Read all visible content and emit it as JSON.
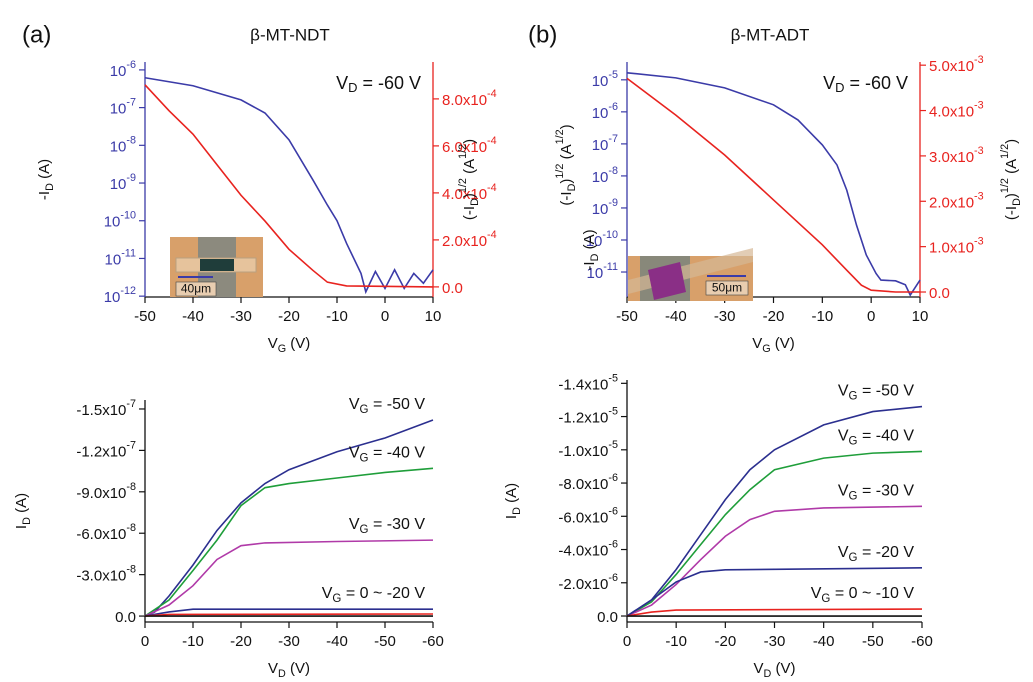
{
  "chart_data": [
    {
      "type": "line",
      "panel": "(a)",
      "title": "β-MT-NDT",
      "annotation": [
        "V",
        {
          "sub": "D"
        },
        " = -60 V"
      ],
      "inset_label": "40μm",
      "xlabel": [
        "V",
        {
          "sub": "G"
        },
        " (V)"
      ],
      "ylabel": [
        "-I",
        {
          "sub": "D"
        },
        " (A)"
      ],
      "y2label": [
        "(-I",
        {
          "sub": "D"
        },
        ")",
        {
          "sup": "1/2"
        },
        " (A",
        {
          "sup": "1/2"
        },
        ")"
      ],
      "xlim": [
        -50,
        10
      ],
      "xticks": [
        -50,
        -40,
        -30,
        -20,
        -10,
        0,
        10
      ],
      "yscale": "log",
      "ylim": [
        9.5e-13,
        1.62e-06
      ],
      "ycolor": "#3b3ba8",
      "yticks": [
        {
          "value": 1e-06,
          "label": [
            "10",
            {
              "sup": "-6"
            }
          ]
        },
        {
          "value": 1e-07,
          "label": [
            "10",
            {
              "sup": "-7"
            }
          ]
        },
        {
          "value": 1e-08,
          "label": [
            "10",
            {
              "sup": "-8"
            }
          ]
        },
        {
          "value": 1e-09,
          "label": [
            "10",
            {
              "sup": "-9"
            }
          ]
        },
        {
          "value": 1e-10,
          "label": [
            "10",
            {
              "sup": "-10"
            }
          ]
        },
        {
          "value": 1e-11,
          "label": [
            "10",
            {
              "sup": "-11"
            }
          ]
        },
        {
          "value": 1e-12,
          "label": [
            "10",
            {
              "sup": "-12"
            }
          ]
        }
      ],
      "y2lim": [
        -4.3e-05,
        0.000957
      ],
      "y2color": "#e8231f",
      "y2ticks": [
        {
          "value": 0,
          "label": "0.0"
        },
        {
          "value": 0.0002,
          "label": [
            "2.0x10",
            {
              "sup": "-4"
            }
          ]
        },
        {
          "value": 0.0004,
          "label": [
            "4.0x10",
            {
              "sup": "-4"
            }
          ]
        },
        {
          "value": 0.0006,
          "label": [
            "6.0x10",
            {
              "sup": "-4"
            }
          ]
        },
        {
          "value": 0.0008,
          "label": [
            "8.0x10",
            {
              "sup": "-4"
            }
          ]
        }
      ],
      "series": [
        {
          "color": "#3b3ba8",
          "x": [
            -50,
            -40,
            -30,
            -25,
            -20,
            -15,
            -12,
            -10,
            -8,
            -5,
            -4,
            -2,
            0,
            2,
            4,
            6,
            8,
            10
          ],
          "values": [
            6.2e-07,
            3.8e-07,
            1.6e-07,
            7.2e-08,
            1.4e-08,
            1.2e-09,
            2.6e-10,
            1e-10,
            2.5e-11,
            4e-12,
            1.3e-12,
            4.5e-12,
            1.6e-12,
            5e-12,
            1.6e-12,
            4e-12,
            2.2e-12,
            5e-12
          ]
        },
        {
          "color": "#e8231f",
          "axis": "y2",
          "x": [
            -50,
            -45,
            -40,
            -35,
            -30,
            -25,
            -20,
            -15,
            -12,
            -8,
            10
          ],
          "values": [
            0.00086,
            0.00075,
            0.00065,
            0.00052,
            0.00039,
            0.00028,
            0.00016,
            7e-05,
            2e-05,
            4e-06,
            0
          ]
        }
      ]
    },
    {
      "type": "line",
      "panel": "(b)",
      "title": "β-MT-ADT",
      "annotation": [
        "V",
        {
          "sub": "D"
        },
        " = -60 V"
      ],
      "inset_label": "50μm",
      "xlabel": [
        "V",
        {
          "sub": "G"
        },
        " (V)"
      ],
      "ylabel": [
        "-I",
        {
          "sub": "D"
        },
        " (A)"
      ],
      "ylabel_outer": [
        "(-I",
        {
          "sub": "D"
        },
        ")",
        {
          "sup": "1/2"
        },
        " (A",
        {
          "sup": "1/2"
        },
        ")"
      ],
      "y2label": [
        "(-I",
        {
          "sub": "D"
        },
        ")",
        {
          "sup": "1/2"
        },
        " (A",
        {
          "sup": "1/2"
        },
        ")"
      ],
      "xlim": [
        -50,
        10
      ],
      "xticks": [
        -50,
        -40,
        -30,
        -20,
        -10,
        0,
        10
      ],
      "yscale": "log",
      "ylim": [
        1.66e-12,
        3.6e-05
      ],
      "ycolor": "#3b3ba8",
      "yticks": [
        {
          "value": 1e-05,
          "label": [
            "10",
            {
              "sup": "-5"
            }
          ]
        },
        {
          "value": 1e-06,
          "label": [
            "10",
            {
              "sup": "-6"
            }
          ]
        },
        {
          "value": 1e-07,
          "label": [
            "10",
            {
              "sup": "-7"
            }
          ]
        },
        {
          "value": 1e-08,
          "label": [
            "10",
            {
              "sup": "-8"
            }
          ]
        },
        {
          "value": 1e-09,
          "label": [
            "10",
            {
              "sup": "-9"
            }
          ]
        },
        {
          "value": 1e-10,
          "label": [
            "10",
            {
              "sup": "-10"
            }
          ]
        },
        {
          "value": 1e-11,
          "label": [
            "10",
            {
              "sup": "-11"
            }
          ]
        }
      ],
      "y2lim": [
        -0.00011,
        0.00507
      ],
      "y2color": "#e8231f",
      "y2ticks": [
        {
          "value": 0,
          "label": "0.0"
        },
        {
          "value": 0.001,
          "label": [
            "1.0x10",
            {
              "sup": "-3"
            }
          ]
        },
        {
          "value": 0.002,
          "label": [
            "2.0x10",
            {
              "sup": "-3"
            }
          ]
        },
        {
          "value": 0.003,
          "label": [
            "3.0x10",
            {
              "sup": "-3"
            }
          ]
        },
        {
          "value": 0.004,
          "label": [
            "4.0x10",
            {
              "sup": "-3"
            }
          ]
        },
        {
          "value": 0.005,
          "label": [
            "5.0x10",
            {
              "sup": "-3"
            }
          ]
        }
      ],
      "series": [
        {
          "color": "#3b3ba8",
          "x": [
            -50,
            -40,
            -30,
            -20,
            -15,
            -10,
            -7,
            -5,
            -3,
            -1,
            1,
            2,
            5,
            7,
            8,
            10
          ],
          "values": [
            1.66e-05,
            1.15e-05,
            5.6e-06,
            1.66e-06,
            5.6e-07,
            9.3e-08,
            2.2e-08,
            3.6e-09,
            2.9e-10,
            3.4e-11,
            9e-12,
            5.6e-12,
            5.3e-12,
            4e-12,
            1.9e-12,
            5.6e-12
          ]
        },
        {
          "color": "#e8231f",
          "axis": "y2",
          "x": [
            -50,
            -40,
            -30,
            -20,
            -10,
            -5,
            -2,
            0,
            5,
            10
          ],
          "values": [
            0.00471,
            0.0039,
            0.00302,
            0.00203,
            0.00104,
            0.00048,
            0.00015,
            4e-05,
            0,
            0
          ]
        }
      ]
    },
    {
      "type": "line",
      "xlabel": [
        "V",
        {
          "sub": "D"
        },
        " (V)"
      ],
      "ylabel": [
        "I",
        {
          "sub": "D"
        },
        " (A)"
      ],
      "xlim": [
        0,
        -60
      ],
      "xticks": [
        0,
        -10,
        -20,
        -30,
        -40,
        -50,
        -60
      ],
      "ylim": [
        4.3e-09,
        -1.565e-07
      ],
      "yticks": [
        {
          "value": 0,
          "label": "0.0"
        },
        {
          "value": -3e-08,
          "label": [
            "-3.0x10",
            {
              "sup": "-8"
            }
          ]
        },
        {
          "value": -6e-08,
          "label": [
            "-6.0x10",
            {
              "sup": "-8"
            }
          ]
        },
        {
          "value": -9e-08,
          "label": [
            "-9.0x10",
            {
              "sup": "-8"
            }
          ]
        },
        {
          "value": -1.2e-07,
          "label": [
            "-1.2x10",
            {
              "sup": "-7"
            }
          ]
        },
        {
          "value": -1.5e-07,
          "label": [
            "-1.5x10",
            {
              "sup": "-7"
            }
          ]
        }
      ],
      "series": [
        {
          "name": [
            "V",
            {
              "sub": "G"
            },
            " = -50 V"
          ],
          "color": "#2b2f8f",
          "x": [
            0,
            -2,
            -5,
            -10,
            -15,
            -20,
            -25,
            -30,
            -40,
            -50,
            -60
          ],
          "values": [
            0,
            -2.9e-09,
            -1.45e-08,
            -3.7e-08,
            -6.2e-08,
            -8.2e-08,
            -9.6e-08,
            -1.06e-07,
            -1.19e-07,
            -1.29e-07,
            -1.42e-07
          ]
        },
        {
          "name": [
            "V",
            {
              "sub": "G"
            },
            " = -40 V"
          ],
          "color": "#1f9e3a",
          "x": [
            0,
            -5,
            -10,
            -15,
            -20,
            -25,
            -30,
            -40,
            -50,
            -60
          ],
          "values": [
            0,
            -1.16e-08,
            -3.3e-08,
            -5.5e-08,
            -8e-08,
            -9.3e-08,
            -9.6e-08,
            -1e-07,
            -1.04e-07,
            -1.07e-07
          ]
        },
        {
          "name": [
            "V",
            {
              "sub": "G"
            },
            " = -30 V"
          ],
          "color": "#b03aa8",
          "x": [
            0,
            -5,
            -10,
            -15,
            -20,
            -25,
            -40,
            -60
          ],
          "values": [
            0,
            -8e-09,
            -2.2e-08,
            -4.1e-08,
            -5.1e-08,
            -5.3e-08,
            -5.4e-08,
            -5.5e-08
          ]
        },
        {
          "name": [
            "V",
            {
              "sub": "G"
            },
            " = 0 ~ -20 V"
          ],
          "color": "#2b2f8f",
          "x": [
            0,
            -5,
            -10,
            -60
          ],
          "values": [
            0,
            -3e-09,
            -5e-09,
            -5e-09
          ]
        },
        {
          "color": "#e8231f",
          "x": [
            0,
            -5,
            -60
          ],
          "values": [
            0,
            -1.2e-09,
            -1.5e-09
          ]
        },
        {
          "color": "#111111",
          "x": [
            0,
            -60
          ],
          "values": [
            0,
            0
          ]
        }
      ]
    },
    {
      "type": "line",
      "xlabel": [
        "V",
        {
          "sub": "D"
        },
        " (V)"
      ],
      "ylabel": [
        "I",
        {
          "sub": "D"
        },
        " (A)"
      ],
      "xlim": [
        0,
        -60
      ],
      "xticks": [
        0,
        -10,
        -20,
        -30,
        -40,
        -50,
        -60
      ],
      "ylim": [
        3.6e-07,
        -1.42e-05
      ],
      "yticks": [
        {
          "value": 0,
          "label": "0.0"
        },
        {
          "value": -2e-06,
          "label": [
            "-2.0x10",
            {
              "sup": "-6"
            }
          ]
        },
        {
          "value": -4e-06,
          "label": [
            "-4.0x10",
            {
              "sup": "-6"
            }
          ]
        },
        {
          "value": -6e-06,
          "label": [
            "-6.0x10",
            {
              "sup": "-6"
            }
          ]
        },
        {
          "value": -8e-06,
          "label": [
            "-8.0x10",
            {
              "sup": "-6"
            }
          ]
        },
        {
          "value": -1e-05,
          "label": [
            "-1.0x10",
            {
              "sup": "-5"
            }
          ]
        },
        {
          "value": -1.2e-05,
          "label": [
            "-1.2x10",
            {
              "sup": "-5"
            }
          ]
        },
        {
          "value": -1.4e-05,
          "label": [
            "-1.4x10",
            {
              "sup": "-5"
            }
          ]
        }
      ],
      "series": [
        {
          "name": [
            "V",
            {
              "sub": "G"
            },
            " = -50 V"
          ],
          "color": "#2b2f8f",
          "x": [
            0,
            -5,
            -10,
            -15,
            -20,
            -25,
            -30,
            -40,
            -50,
            -60
          ],
          "values": [
            0,
            -9.7e-07,
            -2.8e-06,
            -4.9e-06,
            -7e-06,
            -8.8e-06,
            -1e-05,
            -1.15e-05,
            -1.23e-05,
            -1.26e-05
          ]
        },
        {
          "name": [
            "V",
            {
              "sub": "G"
            },
            " = -40 V"
          ],
          "color": "#1f9e3a",
          "x": [
            0,
            -5,
            -10,
            -15,
            -20,
            -25,
            -30,
            -40,
            -50,
            -60
          ],
          "values": [
            0,
            -8.5e-07,
            -2.5e-06,
            -4.3e-06,
            -6.1e-06,
            -7.6e-06,
            -8.8e-06,
            -9.5e-06,
            -9.8e-06,
            -9.9e-06
          ]
        },
        {
          "name": [
            "V",
            {
              "sub": "G"
            },
            " = -30 V"
          ],
          "color": "#b03aa8",
          "x": [
            0,
            -5,
            -10,
            -15,
            -20,
            -25,
            -30,
            -40,
            -60
          ],
          "values": [
            0,
            -6.6e-07,
            -1.9e-06,
            -3.4e-06,
            -4.8e-06,
            -5.8e-06,
            -6.3e-06,
            -6.5e-06,
            -6.6e-06
          ]
        },
        {
          "name": [
            "V",
            {
              "sub": "G"
            },
            " = -20 V"
          ],
          "color": "#2b2f8f",
          "x": [
            0,
            -5,
            -10,
            -15,
            -20,
            -60
          ],
          "values": [
            0,
            -9.7e-07,
            -2.05e-06,
            -2.65e-06,
            -2.78e-06,
            -2.9e-06
          ]
        },
        {
          "name": [
            "V",
            {
              "sub": "G"
            },
            " = 0 ~ -10 V"
          ],
          "color": "#e8231f",
          "x": [
            0,
            -5,
            -10,
            -60
          ],
          "values": [
            0,
            -2.4e-07,
            -3.6e-07,
            -4.2e-07
          ]
        },
        {
          "color": "#111111",
          "x": [
            0,
            -60
          ],
          "values": [
            0,
            0
          ]
        }
      ]
    }
  ]
}
